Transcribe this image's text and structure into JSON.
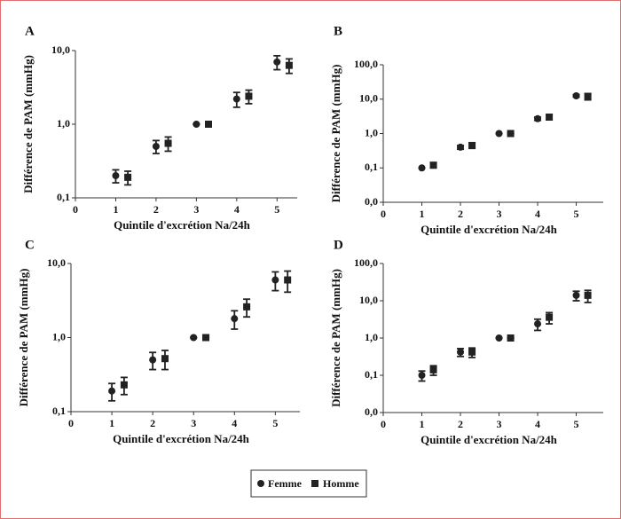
{
  "chart_data": [
    {
      "type": "scatter",
      "label": "A",
      "xlabel": "Quintile d'excrétion Na/24h",
      "ylabel": "Différence de PAM (mmHg)",
      "log_y": true,
      "xlim": [
        0,
        5.5
      ],
      "xticks": [
        0,
        1,
        2,
        3,
        4,
        5
      ],
      "ylim": [
        0.1,
        10
      ],
      "yticks": [
        {
          "value": 0.1,
          "label": "0,1"
        },
        {
          "value": 1,
          "label": "1,0"
        },
        {
          "value": 10,
          "label": "10,0"
        }
      ],
      "series": [
        {
          "name": "Femme",
          "color": "#222222",
          "marker": "circle",
          "x": [
            1,
            2,
            3,
            4,
            5
          ],
          "values": [
            0.2,
            0.5,
            1.0,
            2.2,
            7.0
          ],
          "errors": [
            0.04,
            0.1,
            0,
            0.5,
            1.5
          ]
        },
        {
          "name": "Homme",
          "color": "#222222",
          "marker": "square",
          "x": [
            1.3,
            2.3,
            3.3,
            4.3,
            5.3
          ],
          "values": [
            0.19,
            0.55,
            1.0,
            2.4,
            6.3
          ],
          "errors": [
            0.04,
            0.12,
            0,
            0.5,
            1.4
          ]
        }
      ]
    },
    {
      "type": "scatter",
      "label": "B",
      "xlabel": "Quintile d'excrétion Na/24h",
      "ylabel": "Différence de PAM (mmHg)",
      "log_y": true,
      "xlim": [
        0,
        5.7
      ],
      "xticks": [
        0,
        1,
        2,
        3,
        4,
        5
      ],
      "ylim": [
        0.01,
        100
      ],
      "yticks": [
        {
          "value": 0.01,
          "label": "0,0"
        },
        {
          "value": 0.1,
          "label": "0,1"
        },
        {
          "value": 1,
          "label": "1,0"
        },
        {
          "value": 10,
          "label": "10,0"
        },
        {
          "value": 100,
          "label": "100,0"
        }
      ],
      "series": [
        {
          "name": "Femme",
          "color": "#222222",
          "marker": "circle",
          "x": [
            1,
            2,
            3,
            4,
            5
          ],
          "values": [
            0.1,
            0.4,
            1.0,
            2.7,
            12.5
          ],
          "errors": [
            0,
            0.05,
            0,
            0.3,
            1
          ]
        },
        {
          "name": "Homme",
          "color": "#222222",
          "marker": "square",
          "x": [
            1.3,
            2.3,
            3.3,
            4.3,
            5.3
          ],
          "values": [
            0.12,
            0.45,
            1.0,
            3.0,
            12
          ],
          "errors": [
            0.02,
            0.08,
            0,
            0.5,
            2.5
          ]
        }
      ]
    },
    {
      "type": "scatter",
      "label": "C",
      "xlabel": "Quintile d'excrétion Na/24h",
      "ylabel": "Différence de PAM (mmHg)",
      "log_y": true,
      "xlim": [
        0,
        5.6
      ],
      "xticks": [
        0,
        1,
        2,
        3,
        4,
        5
      ],
      "ylim": [
        0.1,
        10
      ],
      "yticks": [
        {
          "value": 0.1,
          "label": "0,1"
        },
        {
          "value": 1,
          "label": "1,0"
        },
        {
          "value": 10,
          "label": "10,0"
        }
      ],
      "series": [
        {
          "name": "Femme",
          "color": "#222222",
          "marker": "circle",
          "x": [
            1,
            2,
            3,
            4,
            5
          ],
          "values": [
            0.19,
            0.5,
            1.0,
            1.8,
            6.0
          ],
          "errors": [
            0.05,
            0.13,
            0,
            0.5,
            1.7
          ]
        },
        {
          "name": "Homme",
          "color": "#222222",
          "marker": "square",
          "x": [
            1.3,
            2.3,
            3.3,
            4.3,
            5.3
          ],
          "values": [
            0.23,
            0.52,
            1.0,
            2.6,
            6.0
          ],
          "errors": [
            0.06,
            0.15,
            0,
            0.7,
            1.9
          ]
        }
      ]
    },
    {
      "type": "scatter",
      "label": "D",
      "xlabel": "Quintile d'excrétion Na/24h",
      "ylabel": "Différence de PAM (mmHg)",
      "log_y": true,
      "xlim": [
        0,
        5.7
      ],
      "xticks": [
        0,
        1,
        2,
        3,
        4,
        5
      ],
      "ylim": [
        0.01,
        100
      ],
      "yticks": [
        {
          "value": 0.01,
          "label": "0,0"
        },
        {
          "value": 0.1,
          "label": "0,1"
        },
        {
          "value": 1,
          "label": "1,0"
        },
        {
          "value": 10,
          "label": "10,0"
        },
        {
          "value": 100,
          "label": "100,0"
        }
      ],
      "series": [
        {
          "name": "Femme",
          "color": "#222222",
          "marker": "circle",
          "x": [
            1,
            2,
            3,
            4,
            5
          ],
          "values": [
            0.1,
            0.42,
            1.0,
            2.4,
            14
          ],
          "errors": [
            0.03,
            0.1,
            0,
            0.8,
            4
          ]
        },
        {
          "name": "Homme",
          "color": "#222222",
          "marker": "square",
          "x": [
            1.3,
            2.3,
            3.3,
            4.3,
            5.3
          ],
          "values": [
            0.14,
            0.42,
            1.0,
            3.6,
            14
          ],
          "errors": [
            0.04,
            0.12,
            0,
            1.2,
            5
          ]
        }
      ]
    }
  ]
}
